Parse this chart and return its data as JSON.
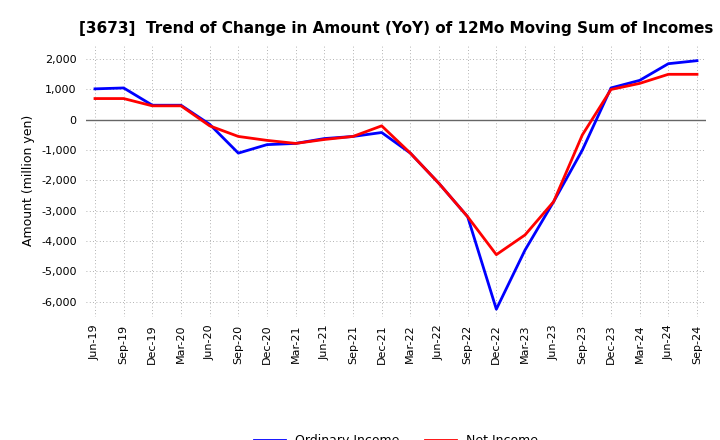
{
  "title": "[3673]  Trend of Change in Amount (YoY) of 12Mo Moving Sum of Incomes",
  "ylabel": "Amount (million yen)",
  "xlabels": [
    "Jun-19",
    "Sep-19",
    "Dec-19",
    "Mar-20",
    "Jun-20",
    "Sep-20",
    "Dec-20",
    "Mar-21",
    "Jun-21",
    "Sep-21",
    "Dec-21",
    "Mar-22",
    "Jun-22",
    "Sep-22",
    "Dec-22",
    "Mar-23",
    "Jun-23",
    "Sep-23",
    "Dec-23",
    "Mar-24",
    "Jun-24",
    "Sep-24"
  ],
  "ordinary_income": [
    1020,
    1050,
    480,
    480,
    -150,
    -1100,
    -820,
    -780,
    -620,
    -550,
    -420,
    -1100,
    -2100,
    -3200,
    -6250,
    -4300,
    -2700,
    -1000,
    1050,
    1300,
    1850,
    1950
  ],
  "net_income": [
    700,
    700,
    460,
    460,
    -200,
    -550,
    -680,
    -780,
    -650,
    -550,
    -200,
    -1100,
    -2100,
    -3200,
    -4450,
    -3800,
    -2700,
    -500,
    1000,
    1200,
    1500,
    1500
  ],
  "ordinary_color": "#0000ff",
  "net_color": "#ff0000",
  "ylim": [
    -6500,
    2500
  ],
  "yticks": [
    -6000,
    -5000,
    -4000,
    -3000,
    -2000,
    -1000,
    0,
    1000,
    2000
  ],
  "background_color": "#ffffff",
  "plot_bg_color": "#ffffff",
  "grid_color": "#999999",
  "zero_line_color": "#666666",
  "line_width": 2.0,
  "title_fontsize": 11,
  "axis_fontsize": 8,
  "ylabel_fontsize": 9
}
